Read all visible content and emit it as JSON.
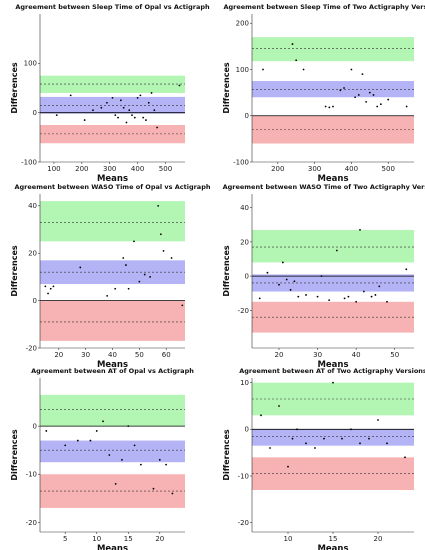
{
  "figure": {
    "background": "#ffffff"
  },
  "colors": {
    "upper_band": "#b3f5b3",
    "mean_band": "#b3b3f5",
    "lower_band": "#f7b3b3",
    "points": "#000000"
  },
  "chart_data": [
    {
      "type": "scatter",
      "title": "Agreement between Sleep Time of Opal vs Actigraph",
      "xlabel": "Means",
      "ylabel": "Differences",
      "xlim": [
        50,
        570
      ],
      "ylim": [
        -100,
        200
      ],
      "xticks": [
        100,
        200,
        300,
        400,
        500
      ],
      "yticks": [
        -100,
        0,
        100
      ],
      "mean_line": 15,
      "mean_ci": [
        -2,
        32
      ],
      "upper_loa": 58,
      "upper_ci": [
        40,
        75
      ],
      "lower_loa": -43,
      "lower_ci": [
        -62,
        -25
      ],
      "zero_line": 0,
      "x": [
        110,
        160,
        210,
        240,
        270,
        290,
        310,
        320,
        330,
        340,
        350,
        360,
        370,
        380,
        390,
        400,
        410,
        420,
        430,
        440,
        450,
        460,
        470,
        550
      ],
      "y": [
        -5,
        35,
        -15,
        5,
        10,
        20,
        30,
        -5,
        -10,
        25,
        10,
        -20,
        5,
        -5,
        -10,
        30,
        35,
        -10,
        -15,
        20,
        40,
        5,
        -30,
        55
      ]
    },
    {
      "type": "scatter",
      "title": "Agreement between Sleep Time of Two Actigraphy Versions",
      "xlabel": "Means",
      "ylabel": "Differences",
      "xlim": [
        130,
        570
      ],
      "ylim": [
        -100,
        220
      ],
      "xticks": [
        200,
        300,
        400,
        500
      ],
      "yticks": [
        -100,
        0,
        100,
        200
      ],
      "mean_line": 57,
      "mean_ci": [
        40,
        75
      ],
      "upper_loa": 145,
      "upper_ci": [
        118,
        170
      ],
      "lower_loa": -30,
      "lower_ci": [
        -60,
        0
      ],
      "zero_line": 0,
      "x": [
        160,
        240,
        250,
        270,
        330,
        340,
        350,
        370,
        380,
        400,
        410,
        420,
        430,
        440,
        450,
        460,
        470,
        480,
        500,
        550
      ],
      "y": [
        100,
        155,
        120,
        100,
        20,
        18,
        20,
        55,
        60,
        100,
        40,
        45,
        90,
        30,
        50,
        45,
        20,
        25,
        35,
        20
      ]
    },
    {
      "type": "scatter",
      "title": "Agreement between WASO Time of Opal vs Actigraph",
      "xlabel": "Means",
      "ylabel": "Differences",
      "xlim": [
        13,
        67
      ],
      "ylim": [
        -20,
        45
      ],
      "xticks": [
        20,
        30,
        40,
        50,
        60
      ],
      "yticks": [
        -20,
        0,
        20,
        40
      ],
      "mean_line": 12,
      "mean_ci": [
        7,
        17
      ],
      "upper_loa": 33,
      "upper_ci": [
        25,
        42
      ],
      "lower_loa": -9,
      "lower_ci": [
        -17,
        0
      ],
      "zero_line": 0,
      "x": [
        15,
        16,
        17,
        18,
        28,
        38,
        41,
        44,
        45,
        46,
        48,
        50,
        52,
        54,
        57,
        58,
        59,
        62,
        66
      ],
      "y": [
        6,
        3,
        5,
        6,
        14,
        2,
        5,
        18,
        15,
        5,
        25,
        8,
        11,
        10,
        40,
        28,
        21,
        18,
        -2
      ]
    },
    {
      "type": "scatter",
      "title": "Agreement between WASO Time of Two Actigraphy Versions",
      "xlabel": "Means",
      "ylabel": "Differences",
      "xlim": [
        13,
        55
      ],
      "ylim": [
        -42,
        48
      ],
      "xticks": [
        20,
        30,
        40,
        50
      ],
      "yticks": [
        -20,
        0,
        20,
        40
      ],
      "mean_line": -4,
      "mean_ci": [
        -9,
        1
      ],
      "upper_loa": 17,
      "upper_ci": [
        8,
        27
      ],
      "lower_loa": -24,
      "lower_ci": [
        -33,
        -15
      ],
      "zero_line": 0,
      "x": [
        15,
        17,
        20,
        21,
        22,
        23,
        24,
        25,
        27,
        30,
        31,
        33,
        35,
        37,
        38,
        40,
        41,
        42,
        44,
        45,
        46,
        48,
        53
      ],
      "y": [
        -13,
        2,
        -5,
        8,
        -2,
        -8,
        -3,
        -12,
        -11,
        -12,
        0,
        -14,
        15,
        -13,
        -12,
        -15,
        27,
        -9,
        -12,
        -11,
        -6,
        -15,
        4
      ]
    },
    {
      "type": "scatter",
      "title": "Agreement between AT of Opal vs Actigraph",
      "xlabel": "Means",
      "ylabel": "Differences",
      "xlim": [
        1,
        24
      ],
      "ylim": [
        -22,
        10
      ],
      "xticks": [
        5,
        10,
        15,
        20
      ],
      "yticks": [
        -20,
        -10,
        0
      ],
      "mean_line": -5,
      "mean_ci": [
        -7.5,
        -3
      ],
      "upper_loa": 3.5,
      "upper_ci": [
        0,
        6.5
      ],
      "lower_loa": -13.5,
      "lower_ci": [
        -17,
        -10
      ],
      "zero_line": 0,
      "x": [
        2,
        5,
        7,
        9,
        10,
        11,
        12,
        13,
        14,
        15,
        16,
        17,
        19,
        20,
        21,
        22
      ],
      "y": [
        -1,
        -4,
        -3,
        -3,
        -1,
        1,
        -6,
        -12,
        -7,
        0,
        -4,
        -8,
        -13,
        -7,
        -8,
        -14
      ]
    },
    {
      "type": "scatter",
      "title": "Agreement between AT of Two Actigraphy Versions",
      "xlabel": "Means",
      "ylabel": "Differences",
      "xlim": [
        6,
        24
      ],
      "ylim": [
        -22,
        11
      ],
      "xticks": [
        10,
        15,
        20
      ],
      "yticks": [
        -20,
        -10,
        0,
        10
      ],
      "mean_line": -1.5,
      "mean_ci": [
        -3.5,
        0
      ],
      "upper_loa": 6.5,
      "upper_ci": [
        3,
        10
      ],
      "lower_loa": -9.5,
      "lower_ci": [
        -13,
        -6
      ],
      "zero_line": 0,
      "x": [
        7,
        8,
        9,
        10,
        10.5,
        11,
        12,
        13,
        14,
        15,
        16,
        17,
        18,
        19,
        20,
        21,
        23
      ],
      "y": [
        3,
        -4,
        5,
        -8,
        -2,
        0,
        -3,
        -4,
        -2,
        10,
        -2,
        0,
        -3,
        -2,
        2,
        -3,
        -6
      ]
    }
  ]
}
